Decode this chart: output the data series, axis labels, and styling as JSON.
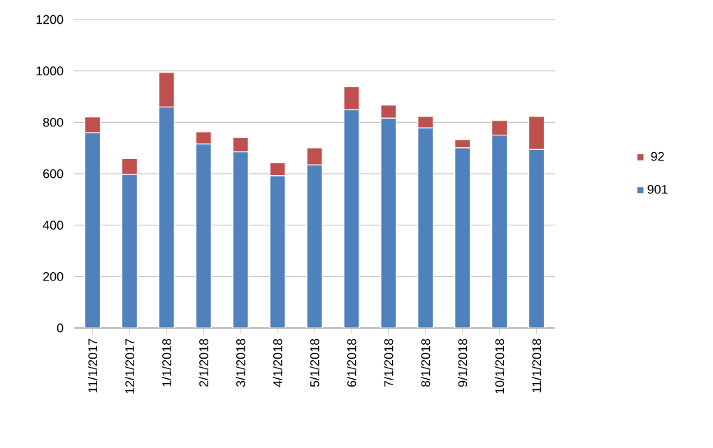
{
  "chart_data": {
    "type": "bar",
    "stacked": true,
    "categories": [
      "11/1/2017",
      "12/1/2017",
      "1/1/2018",
      "2/1/2018",
      "3/1/2018",
      "4/1/2018",
      "5/1/2018",
      "6/1/2018",
      "7/1/2018",
      "8/1/2018",
      "9/1/2018",
      "10/1/2018",
      "11/1/2018"
    ],
    "series": [
      {
        "name": "901",
        "color": "#4f81bd",
        "values": [
          759,
          597,
          860,
          716,
          685,
          592,
          634,
          849,
          816,
          778,
          701,
          750,
          694
        ]
      },
      {
        "name": "92",
        "color": "#c0504d",
        "values": [
          62,
          62,
          134,
          47,
          56,
          51,
          67,
          89,
          51,
          45,
          31,
          57,
          129
        ]
      }
    ],
    "ylim": [
      0,
      1200
    ],
    "yticks": [
      0,
      200,
      400,
      600,
      800,
      1000,
      1200
    ],
    "grid": "y",
    "legend": "right"
  }
}
